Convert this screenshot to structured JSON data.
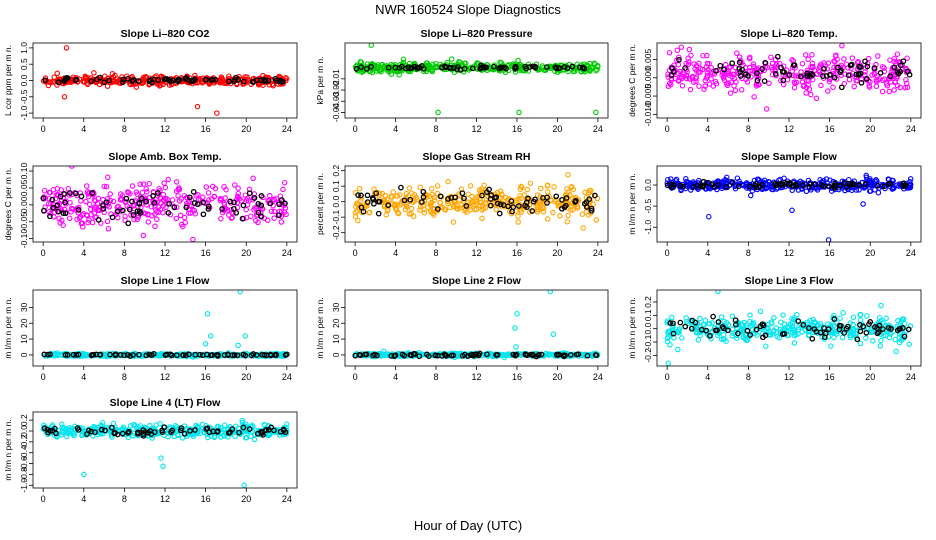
{
  "figure": {
    "title": "NWR  160524  Slope Diagnostics",
    "xlabel": "Hour of Day (UTC)"
  },
  "chart_data": [
    {
      "type": "scatter",
      "title": "Slope Li–820 CO2",
      "ylabel": "L cor ppm per m n.",
      "color": "#ff0000",
      "xlim": [
        -1,
        25
      ],
      "xticks": [
        0,
        4,
        8,
        12,
        16,
        20,
        24
      ],
      "ylim": [
        -1.15,
        1.15
      ],
      "yticks": [
        -1.0,
        -0.5,
        0.0,
        0.5,
        1.0
      ],
      "ytick_labels": [
        "-1.0",
        "-0.5",
        "0.0",
        "0.5",
        "1.0"
      ],
      "spread": 0.12,
      "extreme": [
        [
          2.3,
          1.0
        ],
        [
          15.2,
          -0.8
        ],
        [
          17.1,
          -1.0
        ],
        [
          2.1,
          -0.5
        ]
      ],
      "black_spread": 0.07
    },
    {
      "type": "scatter",
      "title": "Slope Li–820 Pressure",
      "ylabel": "kPa per m n.",
      "color": "#00cc00",
      "xlim": [
        -1,
        25
      ],
      "xticks": [
        0,
        4,
        8,
        12,
        16,
        20,
        24
      ],
      "ylim": [
        -0.045,
        0.022
      ],
      "yticks": [
        -0.04,
        -0.03,
        -0.02,
        -0.01
      ],
      "ytick_labels": [
        "-0.04",
        "-0.03",
        "-0.02",
        "-0.01"
      ],
      "center": 0.0,
      "spread": 0.004,
      "extreme": [
        [
          8.2,
          -0.04
        ],
        [
          16.2,
          -0.04
        ],
        [
          23.8,
          -0.04
        ],
        [
          1.6,
          0.02
        ]
      ],
      "black_spread": 0.0015
    },
    {
      "type": "scatter",
      "title": "Slope Li–820 Temp.",
      "ylabel": "degrees C per m n.",
      "color": "#ff00ff",
      "xlim": [
        -1,
        25
      ],
      "xticks": [
        0,
        4,
        8,
        12,
        16,
        20,
        24
      ],
      "ylim": [
        -0.011,
        0.0095
      ],
      "yticks": [
        -0.01,
        -0.005,
        0.0,
        0.005
      ],
      "ytick_labels": [
        "-0.010",
        "-0.005",
        "0.000",
        "0.005"
      ],
      "center": 0.0015,
      "spread": 0.0045,
      "extreme": [
        [
          1.0,
          0.0075
        ],
        [
          9.8,
          -0.0085
        ]
      ],
      "black_spread": 0.003
    },
    {
      "type": "scatter",
      "title": "Slope Amb. Box Temp.",
      "ylabel": "degrees C per m n.",
      "color": "#ff00ff",
      "xlim": [
        -1,
        25
      ],
      "xticks": [
        0,
        4,
        8,
        12,
        16,
        20,
        24
      ],
      "ylim": [
        -0.11,
        0.115
      ],
      "yticks": [
        -0.1,
        -0.05,
        0.0,
        0.05,
        0.1
      ],
      "ytick_labels": [
        "-0.10",
        "-0.05",
        "0.00",
        "0.05",
        "0.10"
      ],
      "spread": 0.055,
      "extreme": [],
      "black_spread": 0.04
    },
    {
      "type": "scatter",
      "title": "Slope Gas Stream RH",
      "ylabel": "percent per m n.",
      "color": "#ffa500",
      "xlim": [
        -1,
        25
      ],
      "xticks": [
        0,
        4,
        8,
        12,
        16,
        20,
        24
      ],
      "ylim": [
        -0.26,
        0.23
      ],
      "yticks": [
        -0.2,
        -0.1,
        0.0,
        0.1,
        0.2
      ],
      "ytick_labels": [
        "-0.2",
        "-0.1",
        "0.0",
        "0.1",
        "0.2"
      ],
      "spread": 0.09,
      "extreme": [],
      "black_spread": 0.07
    },
    {
      "type": "scatter",
      "title": "Slope Sample Flow",
      "ylabel": "m l/m n per m n.",
      "color": "#0000ff",
      "xlim": [
        -1,
        25
      ],
      "xticks": [
        0,
        4,
        8,
        12,
        16,
        20,
        24
      ],
      "ylim": [
        -1.35,
        0.45
      ],
      "yticks": [
        -1.0,
        -0.5,
        0.0
      ],
      "ytick_labels": [
        "-1.0",
        "-0.5",
        "0.0"
      ],
      "spread": 0.13,
      "extreme": [
        [
          15.9,
          -1.3
        ],
        [
          4.1,
          -0.75
        ],
        [
          12.3,
          -0.6
        ],
        [
          19.3,
          -0.45
        ]
      ],
      "black_spread": 0.06
    },
    {
      "type": "scatter",
      "title": "Slope Line 1 Flow",
      "ylabel": "m l/m n per m n.",
      "color": "#00e5ee",
      "xlim": [
        -1,
        25
      ],
      "xticks": [
        0,
        4,
        8,
        12,
        16,
        20,
        24
      ],
      "ylim": [
        -7,
        41
      ],
      "yticks": [
        0,
        10,
        20,
        30
      ],
      "ytick_labels": [
        "0",
        "10",
        "20",
        "30"
      ],
      "spread": 0.8,
      "extreme": [
        [
          16.2,
          26
        ],
        [
          16.5,
          12
        ],
        [
          19.4,
          40
        ],
        [
          19.9,
          12
        ],
        [
          16.0,
          7
        ],
        [
          19.2,
          6
        ]
      ],
      "black_spread": 0.5
    },
    {
      "type": "scatter",
      "title": "Slope Line 2 Flow",
      "ylabel": "m l/m n per m n.",
      "color": "#00e5ee",
      "xlim": [
        -1,
        25
      ],
      "xticks": [
        0,
        4,
        8,
        12,
        16,
        20,
        24
      ],
      "ylim": [
        -7,
        41
      ],
      "yticks": [
        0,
        10,
        20,
        30
      ],
      "ytick_labels": [
        "0",
        "10",
        "20",
        "30"
      ],
      "spread": 0.9,
      "extreme": [
        [
          16.0,
          26
        ],
        [
          19.3,
          40
        ],
        [
          15.8,
          17
        ],
        [
          19.6,
          13
        ],
        [
          15.9,
          5
        ]
      ],
      "black_spread": 0.9
    },
    {
      "type": "scatter",
      "title": "Slope Line 3 Flow",
      "ylabel": "m l/m n per m n.",
      "color": "#00e5ee",
      "xlim": [
        -1,
        25
      ],
      "xticks": [
        0,
        4,
        8,
        12,
        16,
        20,
        24
      ],
      "ylim": [
        -0.28,
        0.29
      ],
      "yticks": [
        -0.2,
        -0.1,
        0.0,
        0.1,
        0.2
      ],
      "ytick_labels": [
        "-0.2",
        "-0.1",
        "0.0",
        "0.1",
        "0.2"
      ],
      "spread": 0.09,
      "extreme": [
        [
          5.0,
          0.28
        ],
        [
          0.1,
          -0.26
        ]
      ],
      "black_spread": 0.07
    },
    {
      "type": "scatter",
      "title": "Slope Line 4 (LT) Flow",
      "ylabel": "m l/m n per m n.",
      "color": "#00e5ee",
      "xlim": [
        -1,
        25
      ],
      "xticks": [
        0,
        4,
        8,
        12,
        16,
        20,
        24
      ],
      "ylim": [
        -1.05,
        0.35
      ],
      "yticks": [
        -1.0,
        -0.8,
        -0.6,
        -0.4,
        -0.2,
        0.0,
        0.2
      ],
      "ytick_labels": [
        "-1.0",
        "-0.8",
        "-0.6",
        "-0.4",
        "-0.2",
        "0.0",
        "0.2"
      ],
      "spread": 0.11,
      "extreme": [
        [
          4.0,
          -0.8
        ],
        [
          11.8,
          -0.65
        ],
        [
          19.8,
          -1.0
        ],
        [
          11.6,
          -0.5
        ]
      ],
      "black_spread": 0.08
    }
  ]
}
